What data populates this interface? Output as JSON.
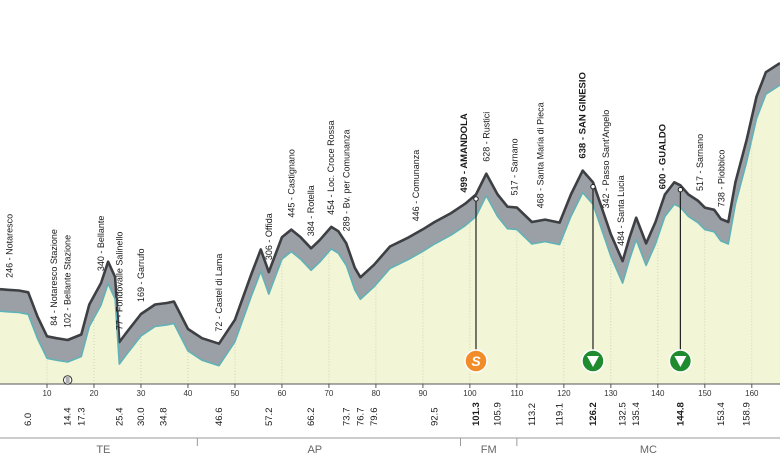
{
  "chart_data": {
    "type": "area",
    "title": "",
    "xlabel": "",
    "ylabel": "",
    "xlim": [
      0,
      166
    ],
    "ylim": [
      -60,
      1000
    ],
    "x_ticks": [
      "10",
      "20",
      "30",
      "40",
      "50",
      "60",
      "70",
      "80",
      "90",
      "100",
      "110",
      "120",
      "130",
      "140",
      "150",
      "160"
    ],
    "profile": [
      {
        "x": 0.0,
        "y": 250
      },
      {
        "x": 2.0,
        "y": 248
      },
      {
        "x": 4.0,
        "y": 246
      },
      {
        "x": 6.0,
        "y": 240
      },
      {
        "x": 8.0,
        "y": 160
      },
      {
        "x": 10.0,
        "y": 96
      },
      {
        "x": 12.0,
        "y": 90
      },
      {
        "x": 14.4,
        "y": 84
      },
      {
        "x": 17.3,
        "y": 102
      },
      {
        "x": 19.0,
        "y": 200
      },
      {
        "x": 21.5,
        "y": 270
      },
      {
        "x": 23.0,
        "y": 340
      },
      {
        "x": 24.5,
        "y": 290
      },
      {
        "x": 25.4,
        "y": 77
      },
      {
        "x": 27.0,
        "y": 110
      },
      {
        "x": 30.0,
        "y": 169
      },
      {
        "x": 33.0,
        "y": 200
      },
      {
        "x": 35.5,
        "y": 205
      },
      {
        "x": 37.0,
        "y": 210
      },
      {
        "x": 40.0,
        "y": 120
      },
      {
        "x": 43.0,
        "y": 90
      },
      {
        "x": 46.6,
        "y": 72
      },
      {
        "x": 50.0,
        "y": 150
      },
      {
        "x": 53.5,
        "y": 300
      },
      {
        "x": 55.5,
        "y": 380
      },
      {
        "x": 57.2,
        "y": 306
      },
      {
        "x": 60.0,
        "y": 420
      },
      {
        "x": 62.0,
        "y": 445
      },
      {
        "x": 64.0,
        "y": 420
      },
      {
        "x": 66.2,
        "y": 384
      },
      {
        "x": 68.0,
        "y": 410
      },
      {
        "x": 70.5,
        "y": 454
      },
      {
        "x": 72.0,
        "y": 440
      },
      {
        "x": 73.7,
        "y": 400
      },
      {
        "x": 75.5,
        "y": 320
      },
      {
        "x": 76.7,
        "y": 289
      },
      {
        "x": 79.6,
        "y": 330
      },
      {
        "x": 83.0,
        "y": 390
      },
      {
        "x": 87.0,
        "y": 420
      },
      {
        "x": 90.0,
        "y": 446
      },
      {
        "x": 92.5,
        "y": 470
      },
      {
        "x": 96.0,
        "y": 499
      },
      {
        "x": 99.0,
        "y": 530
      },
      {
        "x": 101.3,
        "y": 560
      },
      {
        "x": 103.5,
        "y": 628
      },
      {
        "x": 105.9,
        "y": 560
      },
      {
        "x": 108.0,
        "y": 520
      },
      {
        "x": 110.0,
        "y": 517
      },
      {
        "x": 113.2,
        "y": 470
      },
      {
        "x": 116.0,
        "y": 478
      },
      {
        "x": 119.1,
        "y": 468
      },
      {
        "x": 121.5,
        "y": 560
      },
      {
        "x": 124.0,
        "y": 638
      },
      {
        "x": 126.2,
        "y": 600
      },
      {
        "x": 128.0,
        "y": 520
      },
      {
        "x": 130.0,
        "y": 430
      },
      {
        "x": 132.5,
        "y": 342
      },
      {
        "x": 134.0,
        "y": 420
      },
      {
        "x": 135.4,
        "y": 484
      },
      {
        "x": 137.5,
        "y": 400
      },
      {
        "x": 139.5,
        "y": 470
      },
      {
        "x": 141.5,
        "y": 560
      },
      {
        "x": 143.5,
        "y": 600
      },
      {
        "x": 144.8,
        "y": 590
      },
      {
        "x": 146.5,
        "y": 560
      },
      {
        "x": 148.5,
        "y": 540
      },
      {
        "x": 150.0,
        "y": 517
      },
      {
        "x": 152.0,
        "y": 510
      },
      {
        "x": 153.4,
        "y": 480
      },
      {
        "x": 155.0,
        "y": 470
      },
      {
        "x": 156.5,
        "y": 600
      },
      {
        "x": 158.9,
        "y": 738
      },
      {
        "x": 161.0,
        "y": 880
      },
      {
        "x": 163.0,
        "y": 960
      },
      {
        "x": 166.0,
        "y": 990
      }
    ],
    "waypoints": [
      {
        "x": 2.0,
        "elev": 246,
        "label": "246 - Notaresco",
        "bold": false
      },
      {
        "x": 11.5,
        "elev": 84,
        "label": "84 - Notaresco Stazione",
        "bold": false
      },
      {
        "x": 14.4,
        "elev": 102,
        "label": "102 - Bellante Stazione",
        "bold": false
      },
      {
        "x": 21.5,
        "elev": 340,
        "label": "340 - Bellante",
        "bold": false
      },
      {
        "x": 25.4,
        "elev": 77,
        "label": "77 - Fondovalle Salinello",
        "bold": false
      },
      {
        "x": 30.0,
        "elev": 169,
        "label": "169 - Garrufo",
        "bold": false
      },
      {
        "x": 46.6,
        "elev": 72,
        "label": "72 - Castel di Lama",
        "bold": false
      },
      {
        "x": 57.2,
        "elev": 306,
        "label": "306 - Offida",
        "bold": false
      },
      {
        "x": 62.0,
        "elev": 445,
        "label": "445 - Castignano",
        "bold": false
      },
      {
        "x": 66.2,
        "elev": 384,
        "label": "384 - Rotella",
        "bold": false
      },
      {
        "x": 70.5,
        "elev": 454,
        "label": "454 - Loc. Croce Rossa",
        "bold": false
      },
      {
        "x": 73.7,
        "elev": 289,
        "label": "289 - Bv. per Comunanza",
        "bold": false
      },
      {
        "x": 88.5,
        "elev": 446,
        "label": "446 - Comunanza",
        "bold": false
      },
      {
        "x": 98.7,
        "elev": 499,
        "label": "499 - AMANDOLA",
        "bold": true
      },
      {
        "x": 103.5,
        "elev": 628,
        "label": "628 - Rustici",
        "bold": false
      },
      {
        "x": 109.5,
        "elev": 517,
        "label": "517 - Sarnano",
        "bold": false
      },
      {
        "x": 115.0,
        "elev": 468,
        "label": "468 - Santa Maria di Pieca",
        "bold": false
      },
      {
        "x": 124.0,
        "elev": 638,
        "label": "638 - SAN GINESIO",
        "bold": true
      },
      {
        "x": 129.0,
        "elev": 342,
        "label": "342 - Passo Sant'Angelo",
        "bold": false
      },
      {
        "x": 132.2,
        "elev": 484,
        "label": "484 - Santa Lucia",
        "bold": false
      },
      {
        "x": 141.0,
        "elev": 600,
        "label": "600 - GUALDO",
        "bold": true
      },
      {
        "x": 149.0,
        "elev": 517,
        "label": "517 - Sarnano",
        "bold": false
      },
      {
        "x": 153.5,
        "elev": 738,
        "label": "738 - Piobbico",
        "bold": false
      }
    ],
    "distances": [
      "6.0",
      "14.4",
      "17.3",
      "25.4",
      "30.0",
      "34.8",
      "46.6",
      "57.2",
      "66.2",
      "73.7",
      "76.7",
      "79.6",
      "92.5",
      "101.3",
      "105.9",
      "113.2",
      "119.1",
      "126.2",
      "132.5",
      "135.4",
      "144.8",
      "153.4",
      "158.9"
    ],
    "distance_positions": [
      6.0,
      14.4,
      17.3,
      25.4,
      30.0,
      34.8,
      46.6,
      57.2,
      66.2,
      73.7,
      76.7,
      79.6,
      92.5,
      101.3,
      105.9,
      113.2,
      119.1,
      126.2,
      132.5,
      135.4,
      144.8,
      153.4,
      158.9
    ],
    "bold_distances": [
      "101.3",
      "126.2",
      "144.8"
    ],
    "markers": [
      {
        "x": 101.3,
        "type": "sprint",
        "symbol": "S",
        "color": "#f28c28"
      },
      {
        "x": 126.2,
        "type": "feed",
        "color": "#1f8a2e"
      },
      {
        "x": 144.8,
        "type": "feed",
        "color": "#1f8a2e"
      }
    ],
    "km_icon_x": 14.4,
    "provinces": [
      {
        "label": "TE",
        "x": 22
      },
      {
        "label": "AP",
        "x": 67
      },
      {
        "label": "FM",
        "x": 104
      },
      {
        "label": "MC",
        "x": 138
      }
    ],
    "province_dividers": [
      42,
      98,
      110
    ],
    "colors": {
      "fill": "#f2f5d6",
      "ridge": "#9aa0a6",
      "ridge_dark": "#3d3f43",
      "valley_line": "#5fb3b8",
      "text": "#1a1a1a"
    }
  }
}
